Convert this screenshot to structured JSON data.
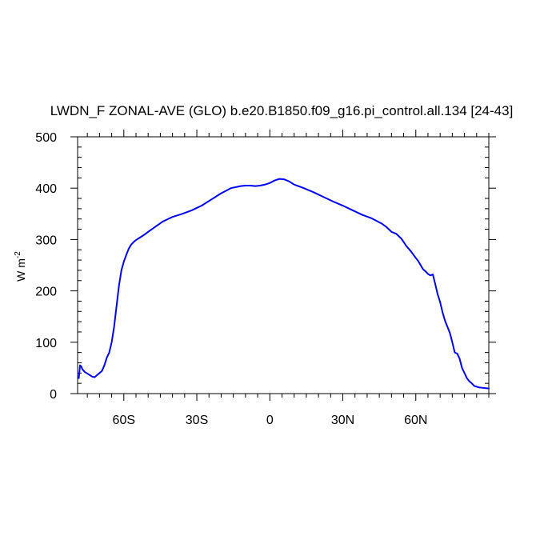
{
  "chart_data": {
    "type": "line",
    "title": "LWDN_F ZONAL-AVE (GLO) b.e20.B1850.f09_g16.pi_control.all.134 [24-43]",
    "ylabel_main": "W m",
    "ylabel_sup": "-2",
    "xlabel": "",
    "xlim": [
      -79,
      90
    ],
    "ylim": [
      0,
      500
    ],
    "grid": false,
    "line_color": "#0000ff",
    "x_ticks": [
      {
        "value": -60,
        "label": "60S"
      },
      {
        "value": -30,
        "label": "30S"
      },
      {
        "value": 0,
        "label": "0"
      },
      {
        "value": 30,
        "label": "30N"
      },
      {
        "value": 60,
        "label": "60N"
      }
    ],
    "y_ticks": [
      {
        "value": 0,
        "label": "0"
      },
      {
        "value": 100,
        "label": "100"
      },
      {
        "value": 200,
        "label": "200"
      },
      {
        "value": 300,
        "label": "300"
      },
      {
        "value": 400,
        "label": "400"
      },
      {
        "value": 500,
        "label": "500"
      }
    ],
    "series": [
      {
        "x": [
          -78.5,
          -78,
          -77.5,
          -77,
          -76,
          -75,
          -74,
          -73,
          -72,
          -71,
          -70,
          -69,
          -68,
          -67,
          -66,
          -65,
          -64,
          -63,
          -62,
          -61,
          -60,
          -59,
          -58,
          -57,
          -56,
          -55,
          -54,
          -52,
          -50,
          -47,
          -44,
          -40,
          -36,
          -32,
          -28,
          -24,
          -20,
          -16,
          -12,
          -10,
          -8,
          -6,
          -4,
          -2,
          0,
          2,
          4,
          6,
          8,
          10,
          14,
          18,
          22,
          26,
          30,
          34,
          38,
          42,
          46,
          48,
          50,
          52,
          54,
          56,
          58,
          60,
          61,
          62,
          63,
          64,
          65,
          66,
          67,
          68,
          69,
          70,
          71,
          72,
          73,
          74,
          75,
          76,
          77,
          78,
          79,
          80,
          81,
          82,
          83,
          84,
          86,
          88,
          90
        ],
        "y": [
          30,
          55,
          53,
          47,
          42,
          39,
          36,
          33,
          32,
          36,
          40,
          44,
          55,
          70,
          80,
          100,
          130,
          170,
          210,
          240,
          257,
          270,
          282,
          290,
          295,
          299,
          302,
          308,
          315,
          325,
          335,
          344,
          350,
          357,
          366,
          378,
          390,
          400,
          404,
          405,
          405,
          404,
          405,
          407,
          410,
          415,
          418,
          417,
          413,
          407,
          400,
          392,
          383,
          374,
          366,
          357,
          348,
          341,
          331,
          324,
          315,
          311,
          302,
          288,
          277,
          264,
          258,
          250,
          242,
          238,
          233,
          230,
          232,
          213,
          193,
          178,
          158,
          142,
          130,
          118,
          100,
          80,
          78,
          68,
          50,
          40,
          30,
          24,
          20,
          15,
          12,
          11,
          10
        ]
      }
    ]
  }
}
